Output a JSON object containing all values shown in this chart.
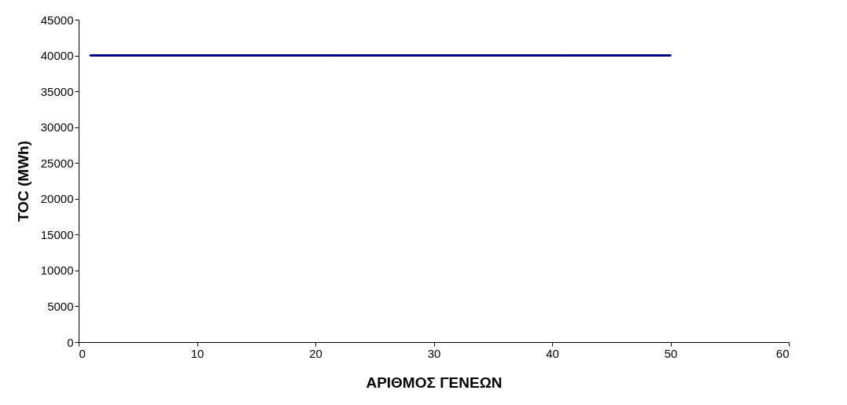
{
  "chart_data": {
    "type": "line",
    "xlabel": "ΑΡΙΘΜΟΣ ΓΕΝΕΩΝ",
    "ylabel": "TOC (MWh)",
    "x": [
      1,
      2,
      3,
      4,
      5,
      6,
      7,
      8,
      9,
      10,
      11,
      12,
      13,
      14,
      15,
      16,
      17,
      18,
      19,
      20,
      21,
      22,
      23,
      24,
      25,
      26,
      27,
      28,
      29,
      30,
      31,
      32,
      33,
      34,
      35,
      36,
      37,
      38,
      39,
      40,
      41,
      42,
      43,
      44,
      45,
      46,
      47,
      48,
      49,
      50
    ],
    "series": [
      {
        "color": "#000080",
        "values": [
          40000,
          40000,
          40000,
          40000,
          40000,
          40000,
          40000,
          40000,
          40000,
          40000,
          40000,
          40000,
          40000,
          40000,
          40000,
          40000,
          40000,
          40000,
          40000,
          40000,
          40000,
          40000,
          40000,
          40000,
          40000,
          40000,
          40000,
          40000,
          40000,
          40000,
          40000,
          40000,
          40000,
          40000,
          40000,
          40000,
          40000,
          40000,
          40000,
          40000,
          40000,
          40000,
          40000,
          40000,
          40000,
          40000,
          40000,
          40000,
          40000,
          40000
        ]
      }
    ],
    "xlim": [
      0,
      60
    ],
    "xticks": [
      0,
      10,
      20,
      30,
      40,
      50,
      60
    ],
    "ylim": [
      0,
      45000
    ],
    "yticks": [
      0,
      5000,
      10000,
      15000,
      20000,
      25000,
      30000,
      35000,
      40000,
      45000
    ],
    "grid": false,
    "marker": "diamond",
    "legend": false,
    "line_style": "solid"
  }
}
